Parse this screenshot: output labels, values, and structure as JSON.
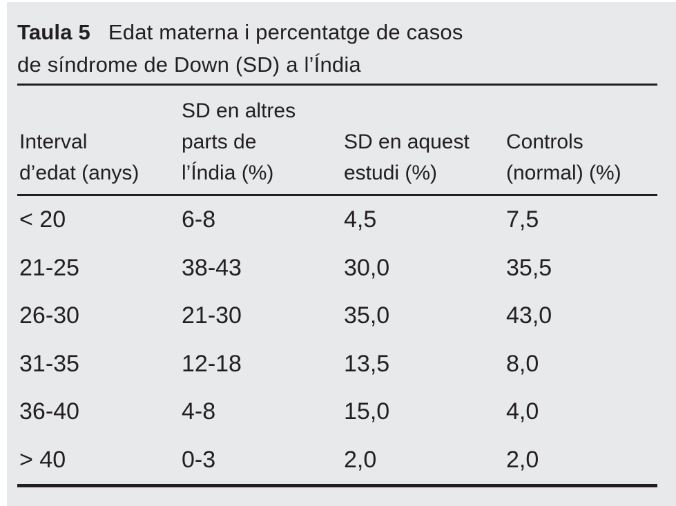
{
  "caption": {
    "label": "Taula 5",
    "title_line1": "Edat materna i percentatge de casos",
    "title_line2": "de síndrome de Down (SD) a l’Índia"
  },
  "header": {
    "col1": {
      "line1": "Interval",
      "line2": "d’edat (anys)"
    },
    "col2": {
      "line1": "SD en altres",
      "line2": "parts de",
      "line3": "l’Índia (%)"
    },
    "col3": {
      "line1": "SD en aquest",
      "line2": "estudi (%)"
    },
    "col4": {
      "line1": "Controls",
      "line2": "(normal) (%)"
    }
  },
  "chart_data": {
    "type": "table",
    "title": "Taula 5 Edat materna i percentatge de casos de síndrome de Down (SD) a l’Índia",
    "columns": [
      "Interval d’edat (anys)",
      "SD en altres parts de l’Índia (%)",
      "SD en aquest estudi (%)",
      "Controls (normal) (%)"
    ],
    "rows": [
      [
        "< 20",
        "6-8",
        "4,5",
        "7,5"
      ],
      [
        "21-25",
        "38-43",
        "30,0",
        "35,5"
      ],
      [
        "26-30",
        "21-30",
        "35,0",
        "43,0"
      ],
      [
        "31-35",
        "12-18",
        "13,5",
        "8,0"
      ],
      [
        "36-40",
        "4-8",
        "15,0",
        "4,0"
      ],
      [
        "> 40",
        "0-3",
        "2,0",
        "2,0"
      ]
    ]
  },
  "colors": {
    "panel_background": "#e7e9ea",
    "text": "#231f20",
    "rule": "#231f20"
  }
}
